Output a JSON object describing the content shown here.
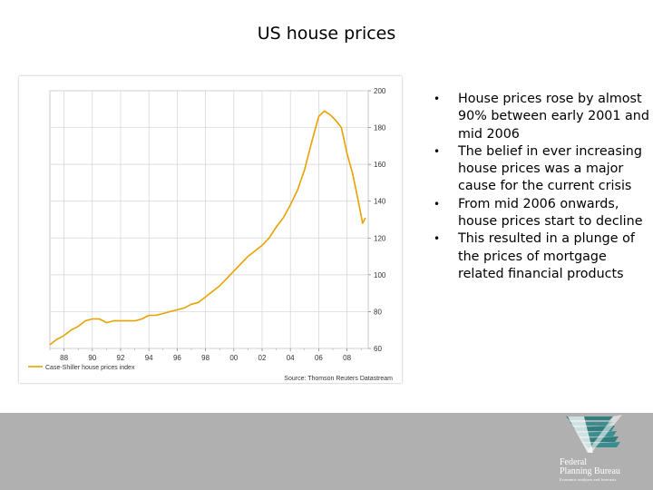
{
  "slide": {
    "title": "US house prices"
  },
  "chart_data": {
    "type": "line",
    "title": "",
    "xlabel": "",
    "ylabel": "",
    "x_ticks": [
      "88",
      "90",
      "92",
      "94",
      "96",
      "98",
      "00",
      "02",
      "04",
      "06",
      "08"
    ],
    "y_ticks": [
      "60",
      "80",
      "100",
      "120",
      "140",
      "160",
      "180",
      "200"
    ],
    "xlim": [
      1987,
      2009.5
    ],
    "ylim": [
      60,
      200
    ],
    "grid": true,
    "legend_position": "bottom-left",
    "series": [
      {
        "name": "Case-Shiller house prices index",
        "color": "#e8a200",
        "x": [
          1987.0,
          1987.5,
          1988.0,
          1988.5,
          1989.0,
          1989.5,
          1990.0,
          1990.5,
          1991.0,
          1991.5,
          1992.0,
          1992.5,
          1993.0,
          1993.5,
          1994.0,
          1994.5,
          1995.0,
          1995.5,
          1996.0,
          1996.5,
          1997.0,
          1997.5,
          1998.0,
          1998.5,
          1999.0,
          1999.5,
          2000.0,
          2000.5,
          2001.0,
          2001.5,
          2002.0,
          2002.5,
          2003.0,
          2003.5,
          2004.0,
          2004.5,
          2005.0,
          2005.5,
          2006.0,
          2006.4,
          2006.8,
          2007.2,
          2007.6,
          2008.0,
          2008.4,
          2008.8,
          2009.1,
          2009.3
        ],
        "values": [
          62,
          65,
          67,
          70,
          72,
          75,
          76,
          76,
          74,
          75,
          75,
          75,
          75,
          76,
          78,
          78,
          79,
          80,
          81,
          82,
          84,
          85,
          88,
          91,
          94,
          98,
          102,
          106,
          110,
          113,
          116,
          120,
          126,
          131,
          138,
          146,
          157,
          172,
          186,
          189,
          187,
          184,
          180,
          166,
          155,
          140,
          128,
          131
        ]
      }
    ],
    "legend": [
      "Case-Shiller house prices index"
    ],
    "source": "Source: Thomson Reuters Datastream"
  },
  "bullets": [
    "House prices rose by almost 90% between early 2001 and mid 2006",
    "The belief in ever increasing house prices was a major cause for the current crisis",
    "From mid 2006 onwards, house prices start to decline",
    "This resulted in a plunge of the prices of mortgage related financial products"
  ],
  "logo": {
    "line1": "Federal",
    "line2": "Planning Bureau",
    "tagline": "Economic analyses and forecasts"
  },
  "colors": {
    "accent": "#e8a200",
    "footer": "#b0b0b0",
    "logo_teal": "#2e7f80"
  }
}
